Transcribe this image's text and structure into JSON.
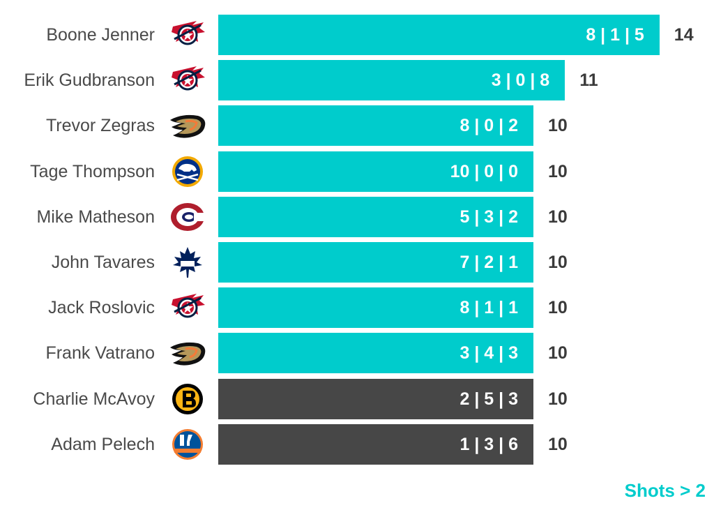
{
  "chart_data": {
    "type": "bar",
    "orientation": "horizontal",
    "title": "",
    "xlabel": "",
    "ylabel": "",
    "xlim": [
      0,
      14
    ],
    "grid": false,
    "legend": "none",
    "colors": {
      "highlight": "#00CCCC",
      "other": "#474747"
    },
    "footnote": "Shots > 2",
    "rows": [
      {
        "name": "Boone Jenner",
        "team_icon": "columbus-blue-jackets-logo-icon",
        "breakdown": "8 | 1 | 5",
        "value": 14,
        "highlight": true
      },
      {
        "name": "Erik Gudbranson",
        "team_icon": "columbus-blue-jackets-logo-icon",
        "breakdown": "3 | 0 | 8",
        "value": 11,
        "highlight": true
      },
      {
        "name": "Trevor Zegras",
        "team_icon": "anaheim-ducks-logo-icon",
        "breakdown": "8 | 0 | 2",
        "value": 10,
        "highlight": true
      },
      {
        "name": "Tage Thompson",
        "team_icon": "buffalo-sabres-logo-icon",
        "breakdown": "10 | 0 | 0",
        "value": 10,
        "highlight": true
      },
      {
        "name": "Mike Matheson",
        "team_icon": "montreal-canadiens-logo-icon",
        "breakdown": "5 | 3 | 2",
        "value": 10,
        "highlight": true
      },
      {
        "name": "John Tavares",
        "team_icon": "toronto-maple-leafs-logo-icon",
        "breakdown": "7 | 2 | 1",
        "value": 10,
        "highlight": true
      },
      {
        "name": "Jack Roslovic",
        "team_icon": "columbus-blue-jackets-logo-icon",
        "breakdown": "8 | 1 | 1",
        "value": 10,
        "highlight": true
      },
      {
        "name": "Frank Vatrano",
        "team_icon": "anaheim-ducks-logo-icon",
        "breakdown": "3 | 4 | 3",
        "value": 10,
        "highlight": true
      },
      {
        "name": "Charlie McAvoy",
        "team_icon": "boston-bruins-logo-icon",
        "breakdown": "2 | 5 | 3",
        "value": 10,
        "highlight": false
      },
      {
        "name": "Adam Pelech",
        "team_icon": "new-york-islanders-logo-icon",
        "breakdown": "1 | 3 | 6",
        "value": 10,
        "highlight": false
      }
    ]
  }
}
